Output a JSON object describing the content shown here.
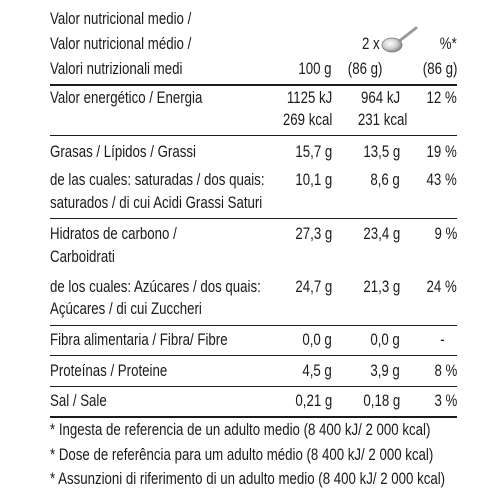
{
  "header": {
    "line1": "Valor nutricional medio /",
    "line2": "Valor nutricional médio /",
    "line3": "Valori nutrizionali medi",
    "col1_head": "100 g",
    "col2_head_top": "2 x",
    "col2_head": "(86 g)",
    "col3_head_top": "%*",
    "col3_head": "(86 g)"
  },
  "rows": {
    "energy": {
      "label": "Valor energético / Energia",
      "v1a": "1125 kJ",
      "v1b": "269 kcal",
      "v2a": "964 kJ",
      "v2b": "231 kcal",
      "pct": "12 %"
    },
    "fat": {
      "label": "Grasas / Lípidos / Grassi",
      "v1": "15,7 g",
      "v2": "13,5 g",
      "pct": "19 %"
    },
    "sat": {
      "label1": "de las cuales: saturadas / dos quais:",
      "label2": "saturados /  di cui Acidi Grassi Saturi",
      "v1": "10,1 g",
      "v2": "8,6 g",
      "pct": "43 %"
    },
    "carbs": {
      "label1": "Hidratos de carbono /",
      "label2": "Carboidrati",
      "v1": "27,3 g",
      "v2": "23,4 g",
      "pct": "9 %"
    },
    "sugars": {
      "label1": "de los cuales: Azúcares / dos quais:",
      "label2": "Açúcares / di cui Zuccheri",
      "v1": "24,7 g",
      "v2": "21,3 g",
      "pct": "24 %"
    },
    "fibre": {
      "label": "Fibra alimentaria / Fibra/ Fibre",
      "v1": "0,0 g",
      "v2": "0,0 g",
      "pct": "-"
    },
    "protein": {
      "label": "Proteínas / Proteine",
      "v1": "4,5 g",
      "v2": "3,9 g",
      "pct": "8 %"
    },
    "salt": {
      "label": "Sal / Sale",
      "v1": "0,21 g",
      "v2": "0,18 g",
      "pct": "3 %"
    }
  },
  "footnotes": [
    "* Ingesta de referencia de un adulto medio (8 400 kJ/ 2 000 kcal)",
    "* Dose de referência para um adulto médio (8 400 kJ/ 2 000 kcal)",
    "* Assunzioni di riferimento di un adulto medio (8 400 kJ/ 2 000 kcal)"
  ],
  "icons": {
    "serving": "spoon-icon"
  }
}
